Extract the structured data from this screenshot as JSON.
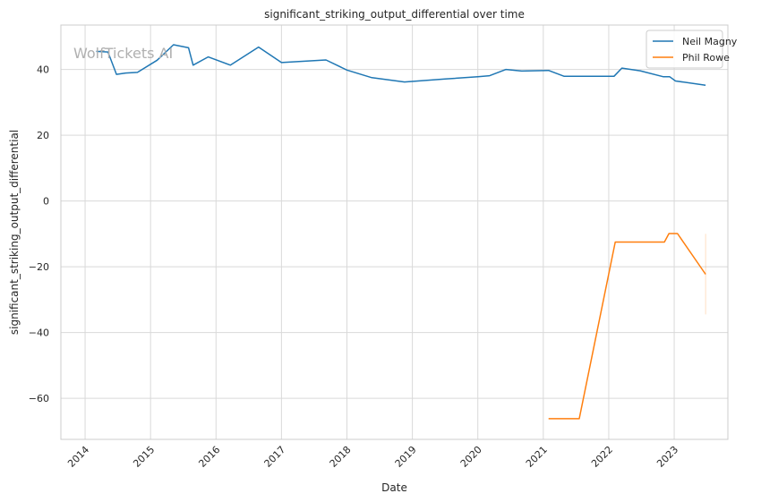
{
  "chart_data": {
    "type": "line",
    "title": "significant_striking_output_differential over time",
    "xlabel": "Date",
    "ylabel": "significant_striking_output_differential",
    "x_tick_labels": [
      "2014",
      "2015",
      "2016",
      "2017",
      "2018",
      "2019",
      "2020",
      "2021",
      "2022",
      "2023"
    ],
    "y_ticks": [
      -60,
      -40,
      -20,
      0,
      20,
      40
    ],
    "xlim": [
      2013.63,
      2023.82
    ],
    "ylim": [
      -72.5,
      53.5
    ],
    "grid": true,
    "legend_position": "top-right",
    "watermark": "WolfTickets AI",
    "series": [
      {
        "name": "Neil Magny",
        "color": "#1f77b4",
        "x": [
          2014.17,
          2014.35,
          2014.48,
          2014.62,
          2014.8,
          2015.1,
          2015.35,
          2015.58,
          2015.65,
          2015.88,
          2016.22,
          2016.65,
          2017.0,
          2017.68,
          2018.0,
          2018.38,
          2018.88,
          2019.5,
          2020.0,
          2020.18,
          2020.43,
          2020.67,
          2021.08,
          2021.32,
          2022.08,
          2022.2,
          2022.48,
          2022.83,
          2022.93,
          2023.02,
          2023.48
        ],
        "y": [
          45.5,
          45.3,
          38.5,
          38.9,
          39.1,
          42.8,
          47.5,
          46.6,
          41.3,
          43.8,
          41.3,
          46.8,
          42.1,
          42.9,
          39.8,
          37.5,
          36.2,
          37.1,
          37.8,
          38.1,
          40.0,
          39.5,
          39.7,
          37.9,
          37.9,
          40.4,
          39.6,
          37.8,
          37.8,
          36.5,
          35.2
        ]
      },
      {
        "name": "Phil Rowe",
        "color": "#ff7f0e",
        "x": [
          2021.08,
          2021.55,
          2022.1,
          2022.85,
          2022.92,
          2023.05,
          2023.48
        ],
        "y": [
          -66.2,
          -66.2,
          -12.5,
          -12.5,
          -9.9,
          -9.9,
          -22.3
        ]
      }
    ],
    "error_band": {
      "series": "Phil Rowe",
      "x": 2023.48,
      "y_range": [
        -34.5,
        -10.0
      ]
    }
  }
}
